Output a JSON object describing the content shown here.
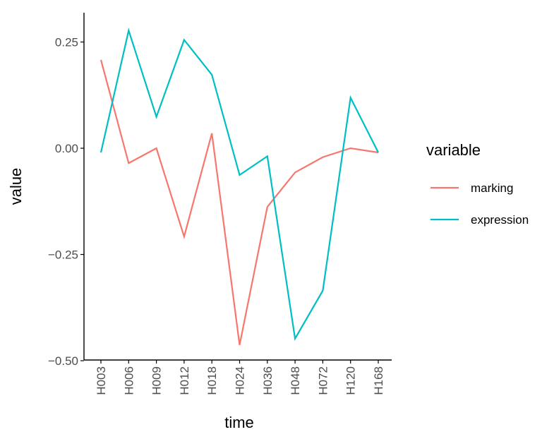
{
  "chart_data": {
    "type": "line",
    "xlabel": "time",
    "ylabel": "value",
    "categories": [
      "H003",
      "H006",
      "H009",
      "H012",
      "H018",
      "H024",
      "H036",
      "H048",
      "H072",
      "H120",
      "H168"
    ],
    "yticks": [
      0.25,
      0.0,
      -0.25,
      -0.5
    ],
    "ytick_labels": [
      "0.25",
      "0.00",
      "−0.25",
      "−0.50"
    ],
    "ylim": [
      -0.5,
      0.3
    ],
    "grid": false,
    "legend": {
      "title": "variable",
      "position": "right"
    },
    "series": [
      {
        "name": "marking",
        "color": "#F8766D",
        "values": [
          0.208,
          -0.035,
          0.0,
          -0.208,
          0.035,
          -0.463,
          -0.138,
          -0.057,
          -0.021,
          0.0,
          -0.01
        ]
      },
      {
        "name": "expression",
        "color": "#00BFC4",
        "values": [
          -0.01,
          0.277,
          0.074,
          0.255,
          0.173,
          -0.063,
          -0.019,
          -0.448,
          -0.335,
          0.119,
          -0.01
        ]
      }
    ]
  }
}
